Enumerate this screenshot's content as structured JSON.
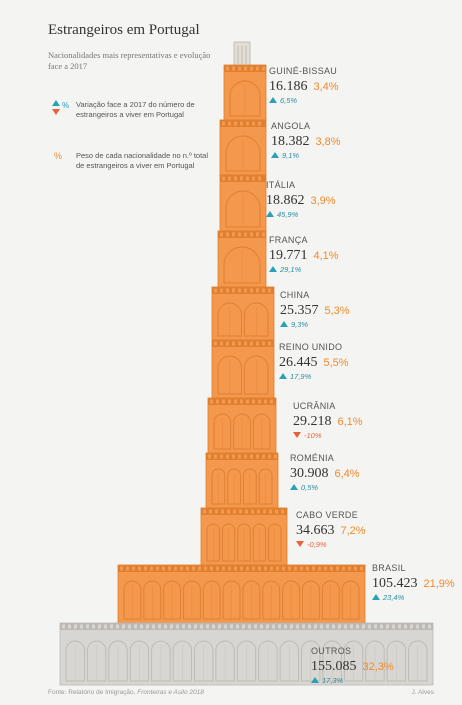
{
  "title": "Estrangeiros em Portugal",
  "subtitle": "Nacionalidades mais representativas e evolução face a 2017",
  "legend": {
    "variation_symbol": "%",
    "variation_text": "Variação face a 2017 do número de estrangeiros a viver em Portugal",
    "weight_symbol": "%",
    "weight_text": "Peso de cada nacionalidade no n.º total de estrangeiros a viver em Portugal"
  },
  "colors": {
    "tower": "#f3984c",
    "tower_dark": "#e07f30",
    "pct": "#ef8a2c",
    "up": "#2aa1b6",
    "down": "#e8633b",
    "base": "#d8d6d2"
  },
  "chart_data": {
    "type": "bar",
    "title": "Estrangeiros em Portugal",
    "subtitle": "Nacionalidades mais representativas e evolução face a 2017",
    "series": [
      {
        "name": "GUINÉ-BISSAU",
        "count": "16.186",
        "count_value": 16186,
        "share": "3,4%",
        "share_value": 3.4,
        "change": "6,5%",
        "change_value": 6.5,
        "direction": "up"
      },
      {
        "name": "ANGOLA",
        "count": "18.382",
        "count_value": 18382,
        "share": "3,8%",
        "share_value": 3.8,
        "change": "9,1%",
        "change_value": 9.1,
        "direction": "up"
      },
      {
        "name": "ITÁLIA",
        "count": "18.862",
        "count_value": 18862,
        "share": "3,9%",
        "share_value": 3.9,
        "change": "45,9%",
        "change_value": 45.9,
        "direction": "up"
      },
      {
        "name": "FRANÇA",
        "count": "19.771",
        "count_value": 19771,
        "share": "4,1%",
        "share_value": 4.1,
        "change": "29,1%",
        "change_value": 29.1,
        "direction": "up"
      },
      {
        "name": "CHINA",
        "count": "25.357",
        "count_value": 25357,
        "share": "5,3%",
        "share_value": 5.3,
        "change": "9,3%",
        "change_value": 9.3,
        "direction": "up"
      },
      {
        "name": "REINO UNIDO",
        "count": "26.445",
        "count_value": 26445,
        "share": "5,5%",
        "share_value": 5.5,
        "change": "17,9%",
        "change_value": 17.9,
        "direction": "up"
      },
      {
        "name": "UCRÂNIA",
        "count": "29.218",
        "count_value": 29218,
        "share": "6,1%",
        "share_value": 6.1,
        "change": "-10%",
        "change_value": -10,
        "direction": "down"
      },
      {
        "name": "ROMÉNIA",
        "count": "30.908",
        "count_value": 30908,
        "share": "6,4%",
        "share_value": 6.4,
        "change": "0,5%",
        "change_value": 0.5,
        "direction": "up"
      },
      {
        "name": "CABO VERDE",
        "count": "34.663",
        "count_value": 34663,
        "share": "7,2%",
        "share_value": 7.2,
        "change": "-0,9%",
        "change_value": -0.9,
        "direction": "down"
      },
      {
        "name": "BRASIL",
        "count": "105.423",
        "count_value": 105423,
        "share": "21,9%",
        "share_value": 21.9,
        "change": "23,4%",
        "change_value": 23.4,
        "direction": "up"
      },
      {
        "name": "OUTROS",
        "count": "155.085",
        "count_value": 155085,
        "share": "32,3%",
        "share_value": 32.3,
        "change": "17,3%",
        "change_value": 17.3,
        "direction": "up"
      }
    ]
  },
  "source": {
    "prefix": "Fonte: Relatório de Imigração, ",
    "italic": "Fronteiras e Asilo 2018"
  },
  "author": "J. Alves"
}
